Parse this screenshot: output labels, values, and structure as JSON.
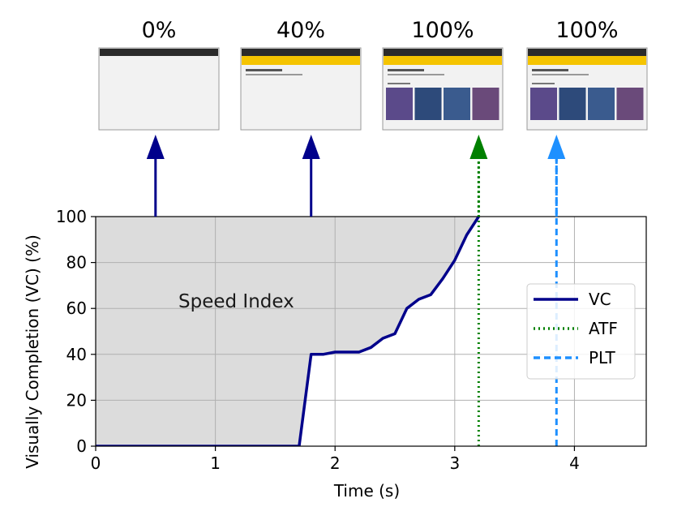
{
  "chart_data": {
    "type": "line",
    "title": "",
    "xlabel": "Time (s)",
    "ylabel": "Visually Completion (VC) (%)",
    "xlim": [
      0,
      4.6
    ],
    "ylim": [
      0,
      100
    ],
    "xticks": [
      "0",
      "1",
      "2",
      "3",
      "4"
    ],
    "yticks": [
      "0",
      "20",
      "40",
      "60",
      "80",
      "100"
    ],
    "grid": true,
    "legend_position": "right",
    "area_label": "Speed Index",
    "series": [
      {
        "name": "VC",
        "color": "#00008b",
        "style": "solid",
        "x": [
          0,
          1.7,
          1.8,
          1.9,
          2.0,
          2.2,
          2.3,
          2.4,
          2.5,
          2.6,
          2.7,
          2.8,
          2.9,
          3.0,
          3.1,
          3.2
        ],
        "y": [
          0,
          0,
          40,
          40,
          41,
          41,
          43,
          47,
          49,
          60,
          64,
          66,
          73,
          81,
          92,
          100
        ]
      },
      {
        "name": "ATF",
        "color": "#008000",
        "style": "dotted",
        "x": [
          3.2,
          3.2
        ],
        "y": [
          0,
          100
        ]
      },
      {
        "name": "PLT",
        "color": "#1e90ff",
        "style": "dashed",
        "x": [
          3.85,
          3.85
        ],
        "y": [
          0,
          100
        ]
      }
    ],
    "snapshots": [
      {
        "label": "0%",
        "time": 0.5,
        "arrow_color": "#00008b",
        "state": "blank"
      },
      {
        "label": "40%",
        "time": 1.8,
        "arrow_color": "#00008b",
        "state": "partial"
      },
      {
        "label": "100%",
        "time": 3.2,
        "arrow_color": "#008000",
        "state": "full"
      },
      {
        "label": "100%",
        "time": 3.85,
        "arrow_color": "#1e90ff",
        "state": "full"
      }
    ]
  }
}
